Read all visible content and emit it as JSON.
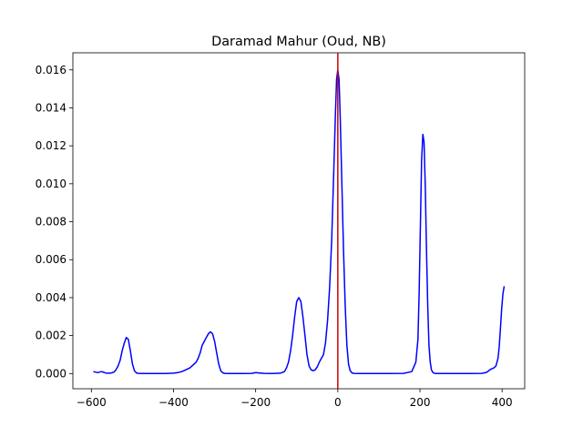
{
  "chart_data": {
    "type": "line",
    "title": "Daramad Mahur (Oud, NB)",
    "xlabel": "",
    "ylabel": "",
    "xlim": [
      -645,
      455
    ],
    "ylim": [
      -0.0008,
      0.0169
    ],
    "xticks": [
      -600,
      -400,
      -200,
      0,
      200,
      400
    ],
    "yticks": [
      0.0,
      0.002,
      0.004,
      0.006,
      0.008,
      0.01,
      0.012,
      0.014,
      0.016
    ],
    "xtick_labels": [
      "−600",
      "−400",
      "−200",
      "0",
      "200",
      "400"
    ],
    "ytick_labels": [
      "0.000",
      "0.002",
      "0.004",
      "0.006",
      "0.008",
      "0.010",
      "0.012",
      "0.014",
      "0.016"
    ],
    "grid": false,
    "legend": "none",
    "series": [
      {
        "color": "#0000ff",
        "x": [
          -595,
          -590,
          -585,
          -580,
          -575,
          -570,
          -565,
          -560,
          -555,
          -550,
          -545,
          -540,
          -535,
          -530,
          -525,
          -520,
          -515,
          -510,
          -505,
          -500,
          -495,
          -490,
          -485,
          -480,
          -475,
          -470,
          -465,
          -460,
          -440,
          -420,
          -400,
          -390,
          -380,
          -370,
          -360,
          -350,
          -345,
          -340,
          -335,
          -330,
          -325,
          -320,
          -315,
          -310,
          -305,
          -300,
          -295,
          -290,
          -285,
          -280,
          -275,
          -270,
          -250,
          -230,
          -210,
          -205,
          -200,
          -195,
          -190,
          -185,
          -180,
          -160,
          -140,
          -130,
          -125,
          -120,
          -115,
          -110,
          -105,
          -100,
          -95,
          -90,
          -85,
          -80,
          -75,
          -70,
          -65,
          -60,
          -55,
          -50,
          -45,
          -40,
          -35,
          -30,
          -25,
          -20,
          -15,
          -10,
          -6,
          -3,
          0,
          3,
          6,
          10,
          14,
          18,
          22,
          26,
          30,
          35,
          40,
          50,
          80,
          120,
          160,
          180,
          190,
          195,
          198,
          201,
          204,
          207,
          210,
          213,
          216,
          219,
          222,
          225,
          228,
          232,
          236,
          240,
          250,
          280,
          320,
          350,
          360,
          365,
          370,
          375,
          380,
          385,
          390,
          393,
          396,
          399,
          402,
          405
        ],
        "y": [
          0.0001,
          8e-05,
          5e-05,
          8e-05,
          0.0001,
          7e-05,
          3e-05,
          2e-05,
          2e-05,
          4e-05,
          8e-05,
          0.0002,
          0.0004,
          0.0007,
          0.0012,
          0.0016,
          0.0019,
          0.0018,
          0.0012,
          0.0005,
          0.00015,
          3e-05,
          1e-05,
          0.0,
          0.0,
          0.0,
          0.0,
          0.0,
          0.0,
          0.0,
          2e-05,
          5e-05,
          0.0001,
          0.0002,
          0.0003,
          0.0005,
          0.0006,
          0.0008,
          0.0011,
          0.0015,
          0.0017,
          0.0019,
          0.0021,
          0.0022,
          0.0021,
          0.0017,
          0.0011,
          0.0005,
          0.00015,
          4e-05,
          1e-05,
          0.0,
          0.0,
          0.0,
          1e-05,
          3e-05,
          5e-05,
          4e-05,
          3e-05,
          2e-05,
          1e-05,
          0.0,
          2e-05,
          0.0001,
          0.0003,
          0.0006,
          0.0012,
          0.002,
          0.003,
          0.0038,
          0.004,
          0.0038,
          0.003,
          0.002,
          0.001,
          0.0004,
          0.0002,
          0.00015,
          0.0002,
          0.00035,
          0.0006,
          0.0008,
          0.001,
          0.0016,
          0.0028,
          0.0045,
          0.007,
          0.0105,
          0.0135,
          0.0155,
          0.016,
          0.0155,
          0.0135,
          0.01,
          0.0065,
          0.0035,
          0.0015,
          0.0005,
          0.00015,
          3e-05,
          1e-05,
          0.0,
          0.0,
          0.0,
          1e-05,
          0.0001,
          0.0006,
          0.0018,
          0.0042,
          0.0078,
          0.0112,
          0.0126,
          0.0122,
          0.0098,
          0.0065,
          0.0035,
          0.0015,
          0.0006,
          0.0002,
          5e-05,
          1e-05,
          0.0,
          0.0,
          0.0,
          0.0,
          1e-05,
          5e-05,
          0.0001,
          0.0002,
          0.00025,
          0.0003,
          0.0004,
          0.0008,
          0.0014,
          0.0024,
          0.0034,
          0.0042,
          0.0046
        ]
      }
    ],
    "vline": {
      "x": 0,
      "color": "#cc0000"
    }
  }
}
